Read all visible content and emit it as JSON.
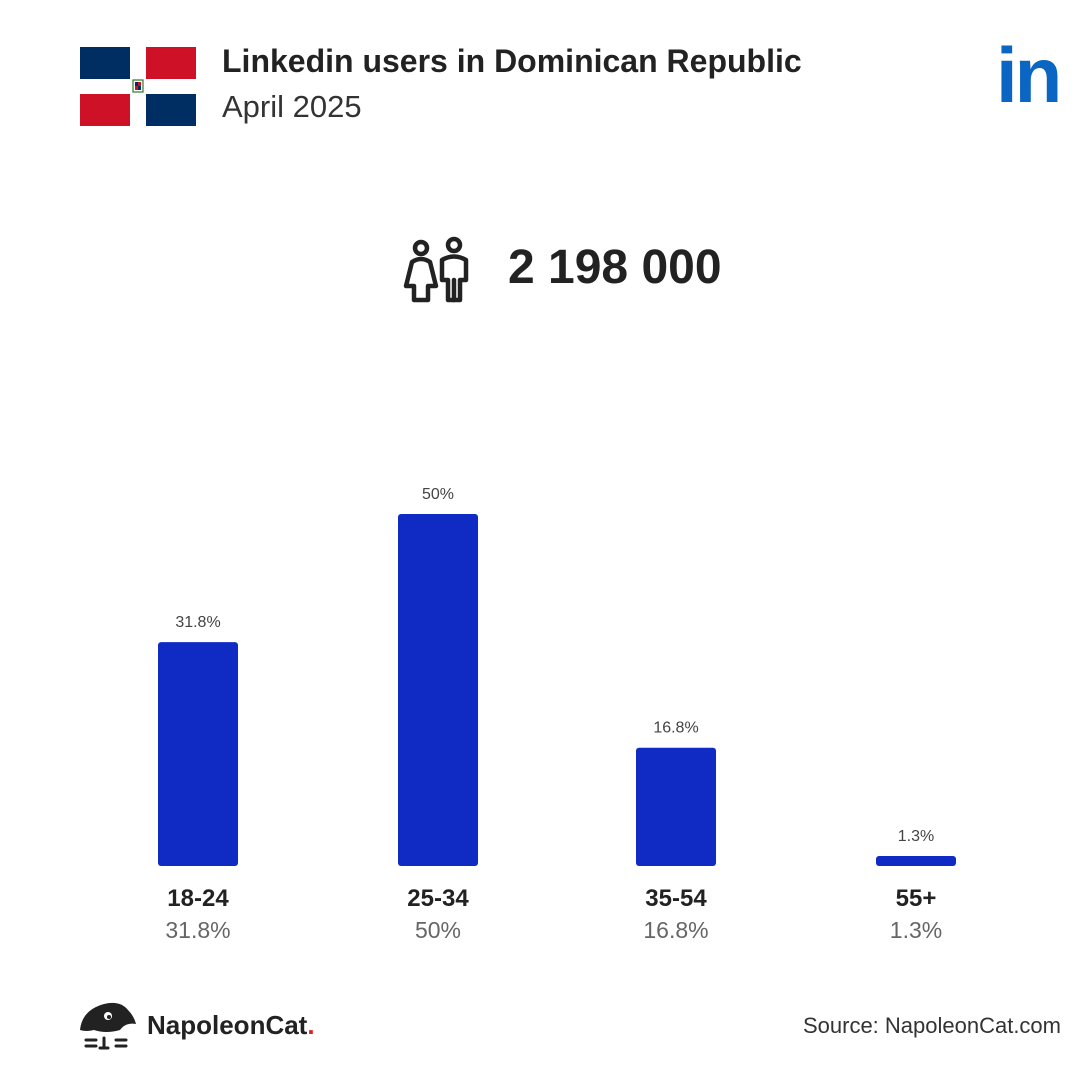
{
  "header": {
    "title": "Linkedin users in Dominican Republic",
    "subtitle": "April 2025",
    "flag_icon": "dominican-republic-flag-icon",
    "logo_icon": "linkedin-logo-icon",
    "logo_text": "in"
  },
  "total": {
    "icon": "users-icon",
    "value": "2 198 000"
  },
  "chart_data": {
    "type": "bar",
    "categories": [
      "18-24",
      "25-34",
      "35-54",
      "55+"
    ],
    "values": [
      31.8,
      50,
      16.8,
      1.3
    ],
    "value_labels": [
      "31.8%",
      "50%",
      "16.8%",
      "1.3%"
    ],
    "unit": "%",
    "bar_color": "#102bc4",
    "grid": false,
    "legend": "none"
  },
  "footer": {
    "brand": "NapoleonCat",
    "brand_dot": ".",
    "brand_icon": "napoleoncat-logo-icon",
    "source": "Source: NapoleonCat.com"
  },
  "colors": {
    "linkedin_blue": "#0a66c2",
    "flag_blue": "#002d62",
    "flag_red": "#ce1126",
    "brand_dot": "#e02020"
  }
}
